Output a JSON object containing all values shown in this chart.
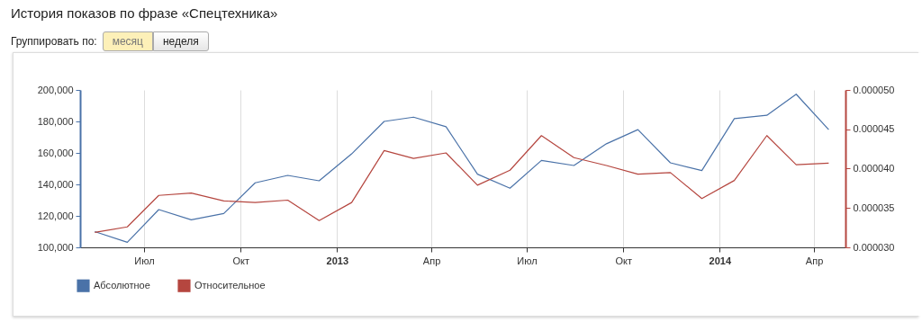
{
  "chart_data": {
    "type": "line",
    "title": "История показов по фразе «Спецтехника»",
    "annotations": [
      "Группировать по:",
      "месяц",
      "неделя"
    ],
    "x": [
      "2012-05-15",
      "2012-06-15",
      "2012-07-15",
      "2012-08-15",
      "2012-09-15",
      "2012-10-15",
      "2012-11-15",
      "2012-12-15",
      "2013-01-15",
      "2013-02-15",
      "2013-03-15",
      "2013-04-15",
      "2013-05-15",
      "2013-06-15",
      "2013-07-15",
      "2013-08-15",
      "2013-09-15",
      "2013-10-15",
      "2013-11-15",
      "2013-12-15",
      "2014-01-15",
      "2014-02-15",
      "2014-03-15",
      "2014-04-15"
    ],
    "series": [
      {
        "name": "Абсолютное",
        "color": "#4a72a8",
        "values": [
          110000,
          103200,
          124000,
          117500,
          121500,
          141000,
          145700,
          142300,
          159400,
          180000,
          182700,
          176600,
          146500,
          137600,
          155200,
          152000,
          165800,
          174800,
          153700,
          148800,
          181800,
          183900,
          197300,
          174800
        ]
      },
      {
        "name": "Относительное",
        "color": "#b5463f",
        "axis": "y2",
        "values": [
          3.19e-05,
          3.26e-05,
          3.66e-05,
          3.69e-05,
          3.59e-05,
          3.57e-05,
          3.6e-05,
          3.34e-05,
          3.57e-05,
          4.23e-05,
          4.13e-05,
          4.2e-05,
          3.79e-05,
          3.98e-05,
          4.42e-05,
          4.14e-05,
          4.04e-05,
          3.93e-05,
          3.95e-05,
          3.62e-05,
          3.85e-05,
          4.42e-05,
          4.05e-05,
          4.07e-05
        ]
      }
    ],
    "xlim": [
      "2012-05-01",
      "2014-05-01"
    ],
    "xticks": [
      {
        "value": "2012-07-01",
        "label": "Июл"
      },
      {
        "value": "2012-10-01",
        "label": "Окт"
      },
      {
        "value": "2013-01-01",
        "label": "2013"
      },
      {
        "value": "2013-04-01",
        "label": "Апр"
      },
      {
        "value": "2013-07-01",
        "label": "Июл"
      },
      {
        "value": "2013-10-01",
        "label": "Окт"
      },
      {
        "value": "2014-01-01",
        "label": "2014"
      },
      {
        "value": "2014-04-01",
        "label": "Апр"
      }
    ],
    "ylim": [
      100000,
      200000
    ],
    "yticks": [
      {
        "value": 100000,
        "label": "100,000"
      },
      {
        "value": 120000,
        "label": "120,000"
      },
      {
        "value": 140000,
        "label": "140,000"
      },
      {
        "value": 160000,
        "label": "160,000"
      },
      {
        "value": 180000,
        "label": "180,000"
      },
      {
        "value": 200000,
        "label": "200,000"
      }
    ],
    "y2lim": [
      3e-05,
      5e-05
    ],
    "y2ticks": [
      {
        "value": 3e-05,
        "label": "0.000030"
      },
      {
        "value": 3.5e-05,
        "label": "0.000035"
      },
      {
        "value": 4e-05,
        "label": "0.000040"
      },
      {
        "value": 4.5e-05,
        "label": "0.000045"
      },
      {
        "value": 5e-05,
        "label": "0.000050"
      }
    ],
    "grid": "x",
    "legend": "bottom left",
    "marker": "none",
    "line_style": "solid"
  }
}
